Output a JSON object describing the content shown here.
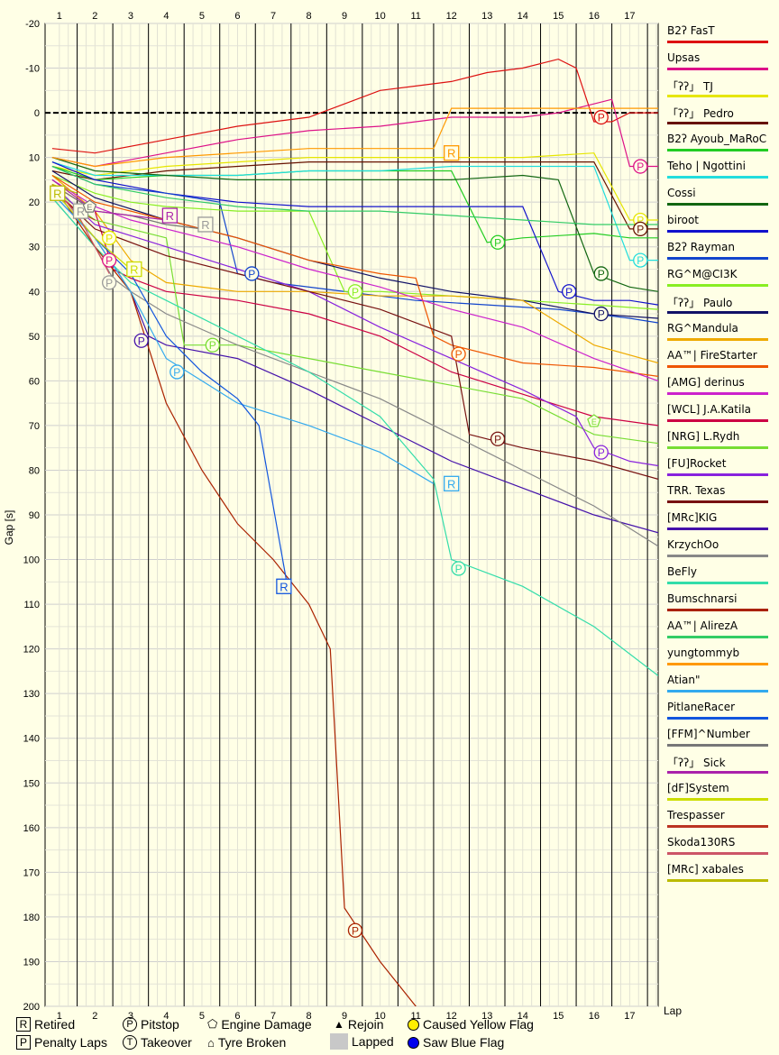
{
  "axis": {
    "ylabel": "Gap [s]",
    "xlabel": "Lap"
  },
  "chart_data": {
    "type": "line",
    "xlabel": "Lap",
    "ylabel": "Gap [s]",
    "xlim": [
      0.6,
      17.8
    ],
    "ylim": [
      -20,
      200
    ],
    "y_inverted": true,
    "yticks": [
      -20,
      -10,
      0,
      10,
      20,
      30,
      40,
      50,
      60,
      70,
      80,
      90,
      100,
      110,
      120,
      130,
      140,
      150,
      160,
      170,
      180,
      190,
      200
    ],
    "xticks": [
      1,
      2,
      3,
      4,
      5,
      6,
      7,
      8,
      9,
      10,
      11,
      12,
      13,
      14,
      15,
      16,
      17
    ],
    "grid": true,
    "legend_position": "right",
    "series": [
      {
        "name": "B2ʔ FasT",
        "color": "#dd1111",
        "x": [
          0.8,
          2,
          4,
          6,
          8,
          9,
          10,
          11,
          12,
          13,
          14,
          15,
          15.5,
          16,
          16.5,
          17,
          17.8
        ],
        "y": [
          8,
          9,
          6,
          3,
          1,
          -2,
          -5,
          -6,
          -7,
          -9,
          -10,
          -12,
          -10,
          2,
          2,
          0,
          0
        ]
      },
      {
        "name": "Upsas",
        "color": "#dd1188",
        "x": [
          0.8,
          2,
          4,
          6,
          8,
          10,
          11,
          12,
          13,
          14,
          15,
          16,
          16.5,
          17,
          17.8
        ],
        "y": [
          10,
          12,
          9,
          6,
          4,
          3,
          2,
          1,
          1,
          1,
          0,
          -2,
          -3,
          12,
          12
        ]
      },
      {
        "name": "「ʔʔ」 TJ",
        "color": "#e6e600",
        "x": [
          0.8,
          2,
          4,
          6,
          8,
          10,
          12,
          14,
          16,
          17,
          17.8
        ],
        "y": [
          12,
          14,
          12,
          11,
          10,
          10,
          10,
          10,
          9,
          24,
          24
        ]
      },
      {
        "name": "「ʔʔ」 Pedro",
        "color": "#661100",
        "x": [
          0.8,
          2,
          4,
          6,
          8,
          10,
          12,
          14,
          16,
          17,
          17.8
        ],
        "y": [
          13,
          15,
          13,
          12,
          11,
          11,
          11,
          11,
          11,
          26,
          26
        ]
      },
      {
        "name": "B2ʔ Ayoub_MaRoC",
        "color": "#22cc22",
        "x": [
          0.8,
          2,
          4,
          6,
          8,
          10,
          12,
          13,
          14,
          16,
          17,
          17.8
        ],
        "y": [
          12,
          15,
          14,
          14,
          13,
          13,
          13,
          29,
          28,
          27,
          28,
          28
        ]
      },
      {
        "name": "Teho | Ngottini",
        "color": "#22dddd",
        "x": [
          0.8,
          2,
          4,
          6,
          8,
          10,
          12,
          14,
          16,
          17,
          17.8
        ],
        "y": [
          11,
          14,
          14,
          14,
          13,
          13,
          12,
          12,
          12,
          33,
          33
        ]
      },
      {
        "name": "Cossi",
        "color": "#116611",
        "x": [
          0.8,
          2,
          4,
          6,
          8,
          10,
          12,
          14,
          15,
          16,
          17,
          17.8
        ],
        "y": [
          10,
          13,
          14,
          15,
          15,
          15,
          15,
          14,
          15,
          36,
          39,
          40
        ]
      },
      {
        "name": "biroot",
        "color": "#1111cc",
        "x": [
          0.8,
          2,
          4,
          6,
          8,
          10,
          12,
          14,
          15,
          16,
          17,
          17.8
        ],
        "y": [
          11,
          15,
          18,
          20,
          21,
          21,
          21,
          21,
          40,
          42,
          42,
          43
        ]
      },
      {
        "name": "B2ʔ Rayman",
        "color": "#1144cc",
        "x": [
          0.8,
          2,
          4,
          5.5,
          6,
          7,
          9,
          11,
          13,
          15,
          17,
          17.8
        ],
        "y": [
          12,
          16,
          18,
          20,
          36,
          38,
          40,
          42,
          43,
          44,
          46,
          47
        ]
      },
      {
        "name": "RG^M@CI3K",
        "color": "#88ee22",
        "x": [
          0.8,
          2,
          3,
          4,
          6,
          8,
          9,
          10,
          12,
          14,
          16,
          17.8
        ],
        "y": [
          14,
          18,
          20,
          21,
          22,
          22,
          40,
          40,
          41,
          42,
          43,
          44
        ]
      },
      {
        "name": "「ʔʔ」 Paulo",
        "color": "#111166",
        "x": [
          0.8,
          2,
          4,
          6,
          8,
          10,
          12,
          14,
          16,
          17.8
        ],
        "y": [
          13,
          19,
          24,
          28,
          33,
          37,
          40,
          42,
          45,
          46
        ]
      },
      {
        "name": "RG^Mandula",
        "color": "#eeaa00",
        "x": [
          0.8,
          2,
          3,
          4,
          6,
          8,
          10,
          12,
          14,
          16,
          17.8
        ],
        "y": [
          14,
          22,
          33,
          38,
          40,
          40,
          41,
          41,
          42,
          52,
          56
        ]
      },
      {
        "name": "AA™| FireStarter",
        "color": "#ee5500",
        "x": [
          0.8,
          2,
          4,
          6,
          8,
          10,
          11,
          11.5,
          12,
          14,
          16,
          17.8
        ],
        "y": [
          14,
          20,
          24,
          28,
          33,
          36,
          37,
          50,
          52,
          56,
          57,
          59
        ]
      },
      {
        "name": "[AMG] derinus",
        "color": "#cc22cc",
        "x": [
          0.8,
          2,
          3,
          4,
          6,
          8,
          10,
          12,
          14,
          16,
          17.8
        ],
        "y": [
          15,
          21,
          24,
          26,
          30,
          35,
          39,
          44,
          48,
          55,
          60
        ]
      },
      {
        "name": "[WCL] J.A.Katila",
        "color": "#cc0044",
        "x": [
          0.8,
          2,
          2.5,
          3,
          4,
          6,
          8,
          10,
          12,
          14,
          16,
          17.8
        ],
        "y": [
          16,
          22,
          35,
          37,
          40,
          42,
          45,
          50,
          58,
          63,
          68,
          70
        ]
      },
      {
        "name": "[NRG] L.Rydh",
        "color": "#77dd33",
        "x": [
          0.8,
          2,
          4,
          4.5,
          6,
          8,
          10,
          12,
          14,
          15.5,
          16,
          17.8
        ],
        "y": [
          17,
          24,
          28,
          52,
          52,
          55,
          58,
          61,
          64,
          70,
          72,
          74
        ]
      },
      {
        "name": "[FU]Rocket",
        "color": "#8822dd",
        "x": [
          0.8,
          2,
          4,
          6,
          8,
          10,
          12,
          14,
          15.5,
          16,
          17,
          17.8
        ],
        "y": [
          16,
          25,
          30,
          35,
          40,
          48,
          55,
          62,
          68,
          75,
          78,
          79
        ]
      },
      {
        "name": "TRR. Texas",
        "color": "#771111",
        "x": [
          0.8,
          2,
          4,
          6,
          8,
          10,
          12,
          12.5,
          13,
          14,
          16,
          17.8
        ],
        "y": [
          17,
          26,
          32,
          36,
          40,
          44,
          50,
          72,
          73,
          75,
          78,
          82
        ]
      },
      {
        "name": "[MRc]KIG",
        "color": "#4411aa",
        "x": [
          0.8,
          2,
          3,
          3.5,
          4,
          6,
          8,
          10,
          12,
          14,
          16,
          17.8
        ],
        "y": [
          18,
          28,
          40,
          50,
          52,
          55,
          62,
          70,
          78,
          84,
          90,
          94
        ]
      },
      {
        "name": "KrzychOo",
        "color": "#888888",
        "x": [
          0.8,
          2,
          2.5,
          3,
          4,
          6,
          8,
          10,
          12,
          14,
          16,
          17.8
        ],
        "y": [
          19,
          30,
          37,
          40,
          45,
          52,
          58,
          64,
          72,
          80,
          88,
          97
        ]
      },
      {
        "name": "BeFly",
        "color": "#33ddaa",
        "x": [
          0.8,
          2,
          3,
          4,
          6,
          8,
          10,
          11.5,
          12,
          14,
          16,
          17.8
        ],
        "y": [
          19,
          30,
          38,
          42,
          50,
          58,
          68,
          82,
          100,
          106,
          115,
          126
        ]
      },
      {
        "name": "Bumschnarsi",
        "color": "#aa2200",
        "x": [
          0.8,
          2,
          3,
          4,
          5,
          6,
          7,
          8,
          8.6,
          9,
          10,
          11,
          12
        ],
        "y": [
          16,
          30,
          40,
          65,
          80,
          92,
          100,
          110,
          120,
          178,
          190,
          200,
          215
        ]
      },
      {
        "name": "AA™| AlirezA",
        "color": "#33cc66",
        "x": [
          0.8,
          2,
          4,
          6,
          8,
          10,
          12,
          14,
          16,
          17.8
        ],
        "y": [
          12,
          16,
          19,
          21,
          22,
          22,
          23,
          24,
          25,
          25
        ]
      },
      {
        "name": "yungtommyb",
        "color": "#ff9900",
        "x": [
          0.8,
          2,
          4,
          6,
          8,
          10,
          11.5,
          12,
          14,
          16,
          17.8
        ],
        "y": [
          10,
          12,
          10,
          9,
          8,
          8,
          8,
          -1,
          -1,
          -1,
          -1
        ]
      },
      {
        "name": "Atian\"",
        "color": "#33aaee",
        "x": [
          0.8,
          2,
          3,
          4,
          5,
          6,
          8,
          10,
          11.5
        ],
        "y": [
          18,
          28,
          40,
          55,
          60,
          65,
          70,
          76,
          83
        ]
      },
      {
        "name": "PitlaneRacer",
        "color": "#1155dd",
        "x": [
          0.8,
          2,
          3,
          4,
          5,
          6,
          6.6,
          7.4
        ],
        "y": [
          17,
          28,
          36,
          50,
          58,
          64,
          70,
          106
        ]
      },
      {
        "name": "[FFM]^Number",
        "color": "#777777",
        "x": [
          0.8,
          2,
          3,
          4,
          5
        ],
        "y": [
          16,
          22,
          23,
          25,
          26
        ]
      },
      {
        "name": "「ʔʔ」 Sick",
        "color": "#aa22aa",
        "x": [
          0.8,
          2,
          3,
          4
        ],
        "y": [
          15,
          22,
          23,
          24
        ]
      },
      {
        "name": "[dF]System",
        "color": "#ccdd00",
        "x": [
          0.8,
          2,
          3
        ],
        "y": [
          17,
          28,
          35
        ]
      },
      {
        "name": "Trespasser",
        "color": "#bb3322",
        "x": [
          0.8,
          1.5,
          2
        ],
        "y": [
          17,
          22,
          24
        ]
      },
      {
        "name": "Skoda130RS",
        "color": "#cc5566",
        "x": [
          0.8,
          1.6,
          2.4
        ],
        "y": [
          16,
          24,
          36
        ]
      },
      {
        "name": "[MRc] xabales",
        "color": "#bbbb00",
        "x": [
          0.8,
          1.5
        ],
        "y": [
          16,
          18
        ]
      }
    ],
    "markers": [
      {
        "type": "R",
        "lap": 0.95,
        "gap": 18,
        "color": "#bbbb00"
      },
      {
        "type": "R",
        "lap": 1.6,
        "gap": 22,
        "color": "#999999"
      },
      {
        "type": "R",
        "lap": 4.1,
        "gap": 23,
        "color": "#aa22aa"
      },
      {
        "type": "R",
        "lap": 5.1,
        "gap": 25,
        "color": "#999999"
      },
      {
        "type": "R",
        "lap": 3.1,
        "gap": 35,
        "color": "#ccdd00"
      },
      {
        "type": "R",
        "lap": 7.3,
        "gap": 106,
        "color": "#1155dd"
      },
      {
        "type": "R",
        "lap": 12.0,
        "gap": 9,
        "color": "#ff9900"
      },
      {
        "type": "R",
        "lap": 12.0,
        "gap": 83,
        "color": "#33aaee"
      },
      {
        "type": "P",
        "lap": 2.4,
        "gap": 28,
        "color": "#e6e600"
      },
      {
        "type": "P",
        "lap": 2.4,
        "gap": 33,
        "color": "#dd1188"
      },
      {
        "type": "P",
        "lap": 2.4,
        "gap": 38,
        "color": "#999999"
      },
      {
        "type": "P",
        "lap": 3.3,
        "gap": 51,
        "color": "#4411aa"
      },
      {
        "type": "P",
        "lap": 4.3,
        "gap": 58,
        "color": "#33aaee"
      },
      {
        "type": "P",
        "lap": 5.3,
        "gap": 52,
        "color": "#77dd33"
      },
      {
        "type": "P",
        "lap": 6.4,
        "gap": 36,
        "color": "#1144cc"
      },
      {
        "type": "P",
        "lap": 9.3,
        "gap": 40,
        "color": "#88ee22"
      },
      {
        "type": "P",
        "lap": 9.3,
        "gap": 183,
        "color": "#aa2200"
      },
      {
        "type": "P",
        "lap": 12.2,
        "gap": 54,
        "color": "#ee5500"
      },
      {
        "type": "P",
        "lap": 12.2,
        "gap": 102,
        "color": "#33ddaa"
      },
      {
        "type": "P",
        "lap": 13.3,
        "gap": 29,
        "color": "#22cc22"
      },
      {
        "type": "P",
        "lap": 13.3,
        "gap": 73,
        "color": "#771111"
      },
      {
        "type": "P",
        "lap": 15.3,
        "gap": 40,
        "color": "#1111cc"
      },
      {
        "type": "P",
        "lap": 16.2,
        "gap": 1,
        "color": "#dd1111"
      },
      {
        "type": "P",
        "lap": 16.2,
        "gap": 36,
        "color": "#116611"
      },
      {
        "type": "P",
        "lap": 16.2,
        "gap": 45,
        "color": "#111166"
      },
      {
        "type": "P",
        "lap": 16.2,
        "gap": 76,
        "color": "#8822dd"
      },
      {
        "type": "P",
        "lap": 17.3,
        "gap": 12,
        "color": "#dd1188"
      },
      {
        "type": "P",
        "lap": 17.3,
        "gap": 24,
        "color": "#e6e600"
      },
      {
        "type": "P",
        "lap": 17.3,
        "gap": 26,
        "color": "#661100"
      },
      {
        "type": "P",
        "lap": 17.3,
        "gap": 33,
        "color": "#22dddd"
      },
      {
        "type": "E",
        "lap": 1.85,
        "gap": 21,
        "color": "#777777"
      },
      {
        "type": "E",
        "lap": 16.0,
        "gap": 69,
        "color": "#77dd33"
      }
    ]
  },
  "key": {
    "retired": "Retired",
    "penalty": "Penalty Laps",
    "pitstop": "Pitstop",
    "takeover": "Takeover",
    "engine": "Engine Damage",
    "tyre": "Tyre Broken",
    "rejoin": "Rejoin",
    "lapped": "Lapped",
    "yellow": "Caused Yellow Flag",
    "blue": "Saw Blue Flag",
    "r_symbol": "R",
    "p_symbol": "P",
    "t_symbol": "T",
    "e_symbol": "E"
  }
}
